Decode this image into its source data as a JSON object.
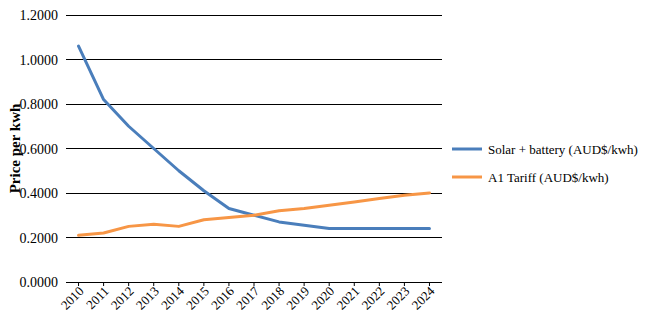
{
  "chart_data": {
    "type": "line",
    "y_label": "Price per kwh",
    "categories": [
      "2010",
      "2011",
      "2012",
      "2013",
      "2014",
      "2015",
      "2016",
      "2017",
      "2018",
      "2019",
      "2020",
      "2021",
      "2022",
      "2023",
      "2024"
    ],
    "series": [
      {
        "name": "Solar + battery (AUD$/kwh)",
        "color": "#4a7ebb",
        "values": [
          1.06,
          0.82,
          0.7,
          0.6,
          0.5,
          0.41,
          0.33,
          0.3,
          0.27,
          0.255,
          0.24,
          0.24,
          0.24,
          0.24,
          0.24
        ]
      },
      {
        "name": "A1 Tariff (AUD$/kwh)",
        "color": "#f79646",
        "values": [
          0.21,
          0.22,
          0.25,
          0.26,
          0.25,
          0.28,
          0.29,
          0.3,
          0.32,
          0.33,
          0.345,
          0.36,
          0.375,
          0.39,
          0.4
        ]
      }
    ],
    "ylim": [
      0,
      1.2
    ],
    "yticks": [
      {
        "value": 0,
        "label": "0.0000"
      },
      {
        "value": 0.2,
        "label": "0.2000"
      },
      {
        "value": 0.4,
        "label": "0.4000"
      },
      {
        "value": 0.6,
        "label": "0.6000"
      },
      {
        "value": 0.8,
        "label": "0.8000"
      },
      {
        "value": 1.0,
        "label": "1.0000"
      },
      {
        "value": 1.2,
        "label": "1.2000"
      }
    ],
    "grid": true,
    "legend": "right"
  }
}
